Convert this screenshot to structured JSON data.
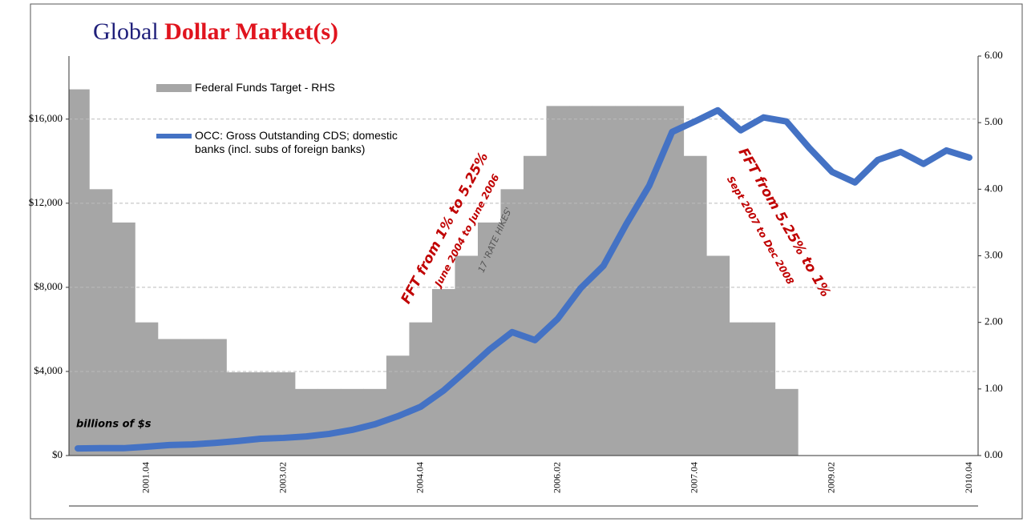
{
  "chart_data": {
    "type": "line_area",
    "title": [
      "Global",
      "Dollar Market(s)"
    ],
    "title_colors": [
      "#1f1f7a",
      "#e0141e"
    ],
    "categories": [
      null,
      null,
      null,
      "2001.04",
      null,
      null,
      null,
      null,
      null,
      "2003.02",
      null,
      null,
      null,
      null,
      null,
      "2004.04",
      null,
      null,
      null,
      null,
      null,
      "2006.02",
      null,
      null,
      null,
      null,
      null,
      "2007.04",
      null,
      null,
      null,
      null,
      null,
      "2009.02",
      null,
      null,
      null,
      null,
      null,
      "2010.04"
    ],
    "series": [
      {
        "name": "Federal Funds Target - RHS",
        "type": "area",
        "axis": "y2",
        "color": "#a6a6a6",
        "values": [
          5.5,
          4.0,
          3.5,
          2.0,
          1.75,
          1.75,
          1.75,
          1.25,
          1.25,
          1.25,
          1.0,
          1.0,
          1.0,
          1.0,
          1.5,
          2.0,
          2.5,
          3.0,
          3.5,
          4.0,
          4.5,
          5.25,
          5.25,
          5.25,
          5.25,
          5.25,
          5.25,
          4.5,
          3.0,
          2.0,
          2.0,
          1.0,
          null,
          null,
          null,
          null,
          null,
          null,
          null,
          null
        ]
      },
      {
        "name": "OCC: Gross Outstanding CDS; domestic banks (incl. subs of foreign banks)",
        "type": "line",
        "color": "#4472c4",
        "values": [
          340,
          350,
          350,
          420,
          500,
          530,
          600,
          690,
          800,
          840,
          910,
          1030,
          1220,
          1490,
          1870,
          2320,
          3090,
          4040,
          5030,
          5870,
          5490,
          6510,
          7960,
          9030,
          11010,
          12840,
          15390,
          15890,
          16420,
          15470,
          16080,
          15890,
          14630,
          13490,
          12990,
          14060,
          14440,
          13870,
          14510,
          14170
        ]
      }
    ],
    "ylim": [
      0,
      19000
    ],
    "yticks": [
      {
        "value": 0,
        "label": "$0"
      },
      {
        "value": 4000,
        "label": "$4,000"
      },
      {
        "value": 8000,
        "label": "$8,000"
      },
      {
        "value": 12000,
        "label": "$12,000"
      },
      {
        "value": 16000,
        "label": "$16,000"
      }
    ],
    "y2lim": [
      0,
      6
    ],
    "y2ticks": [
      {
        "value": 0,
        "label": "0.00"
      },
      {
        "value": 1,
        "label": "1.00"
      },
      {
        "value": 2,
        "label": "2.00"
      },
      {
        "value": 3,
        "label": "3.00"
      },
      {
        "value": 4,
        "label": "4.00"
      },
      {
        "value": 5,
        "label": "5.00"
      },
      {
        "value": 6,
        "label": "6.00"
      }
    ],
    "grid": true,
    "annotations": [
      "billions of $s",
      "FFT from 1% to 5.25%",
      "June 2004 to June 2006",
      "17 'RATE HIKES'",
      "FFT from 5.25% to 1%",
      "Sept 2007 to Dec 2008"
    ],
    "legend": "top-left"
  }
}
